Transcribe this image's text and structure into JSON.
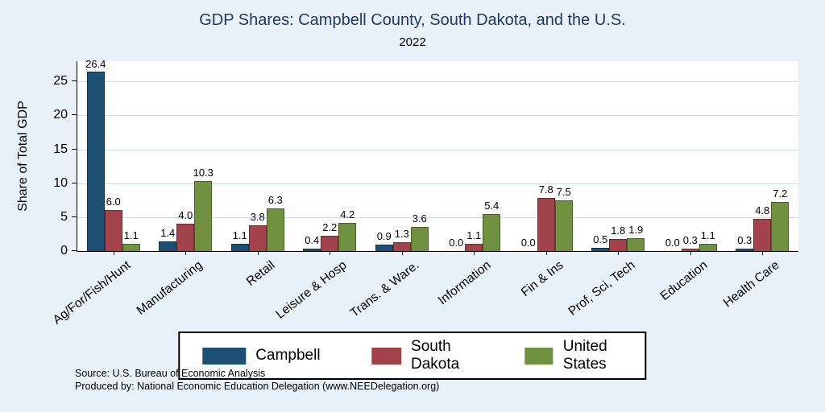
{
  "title": "GDP Shares: Campbell County, South Dakota, and the U.S.",
  "subtitle": "2022",
  "ylabel": "Share of Total GDP",
  "source_line1": "Source: U.S. Bureau of Economic Analysis",
  "source_line2": "Produced by: National Economic Education Delegation (www.NEEDelegation.org)",
  "colors": {
    "background": "#e9f1f8",
    "plot_background": "#ffffff",
    "title": "#1f3864",
    "gridline": "#c9dcec",
    "campbell": "#1d4e73",
    "south_dakota": "#a2424a",
    "united_states": "#6f9140"
  },
  "chart_data": {
    "type": "bar",
    "title": "GDP Shares: Campbell County, South Dakota, and the U.S.",
    "subtitle": "2022",
    "xlabel": "",
    "ylabel": "Share of Total GDP",
    "ylim": [
      0,
      28
    ],
    "yticks": [
      0,
      5,
      10,
      15,
      20,
      25
    ],
    "grid": true,
    "legend_position": "bottom",
    "categories": [
      "Ag/For/Fish/Hunt",
      "Manufacturing",
      "Retail",
      "Leisure & Hosp",
      "Trans. & Ware.",
      "Information",
      "Fin & Ins",
      "Prof, Sci, Tech",
      "Education",
      "Health Care"
    ],
    "series": [
      {
        "name": "Campbell",
        "color": "#1d4e73",
        "values": [
          26.4,
          1.4,
          1.1,
          0.4,
          0.9,
          0.0,
          0.0,
          0.5,
          0.0,
          0.3
        ]
      },
      {
        "name": "South Dakota",
        "color": "#a2424a",
        "values": [
          6.0,
          4.0,
          3.8,
          2.2,
          1.3,
          1.1,
          7.8,
          1.8,
          0.3,
          4.8
        ]
      },
      {
        "name": "United States",
        "color": "#6f9140",
        "values": [
          1.1,
          10.3,
          6.3,
          4.2,
          3.6,
          5.4,
          7.5,
          1.9,
          1.1,
          7.2
        ]
      }
    ]
  }
}
